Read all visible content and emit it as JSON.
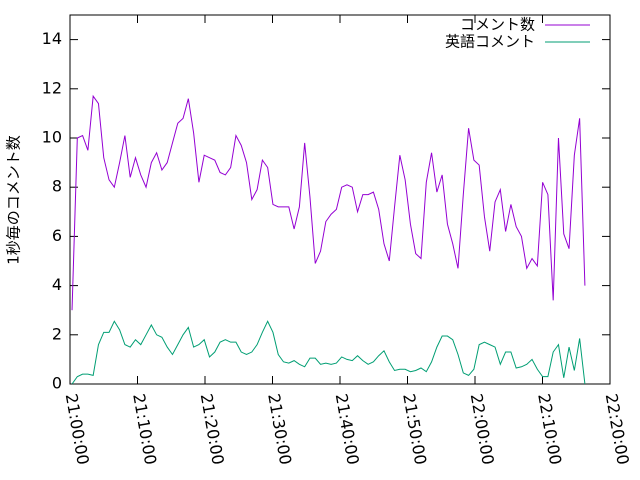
{
  "chart_data": {
    "type": "line",
    "ylabel": "1秒毎のコメント数",
    "x": [
      "21:00:18",
      "21:01:05",
      "21:01:52",
      "21:02:39",
      "21:03:26",
      "21:04:13",
      "21:05:00",
      "21:05:47",
      "21:06:34",
      "21:07:21",
      "21:08:08",
      "21:08:55",
      "21:09:42",
      "21:10:29",
      "21:11:16",
      "21:12:03",
      "21:12:50",
      "21:13:37",
      "21:14:24",
      "21:15:11",
      "21:15:58",
      "21:16:45",
      "21:17:32",
      "21:18:19",
      "21:19:06",
      "21:19:53",
      "21:20:40",
      "21:21:27",
      "21:22:14",
      "21:23:01",
      "21:23:48",
      "21:24:35",
      "21:25:22",
      "21:26:09",
      "21:26:56",
      "21:27:43",
      "21:28:30",
      "21:29:17",
      "21:30:04",
      "21:30:51",
      "21:31:38",
      "21:32:25",
      "21:33:12",
      "21:33:59",
      "21:34:46",
      "21:35:33",
      "21:36:20",
      "21:37:07",
      "21:37:54",
      "21:38:41",
      "21:39:28",
      "21:40:15",
      "21:41:02",
      "21:41:49",
      "21:42:36",
      "21:43:23",
      "21:44:10",
      "21:44:57",
      "21:45:44",
      "21:46:31",
      "21:47:18",
      "21:48:05",
      "21:48:52",
      "21:49:39",
      "21:50:26",
      "21:51:13",
      "21:52:00",
      "21:52:47",
      "21:53:34",
      "21:54:21",
      "21:55:08",
      "21:55:55",
      "21:56:42",
      "21:57:29",
      "21:58:16",
      "21:59:03",
      "21:59:50",
      "22:00:37",
      "22:01:24",
      "22:02:11",
      "22:02:58",
      "22:03:45",
      "22:04:32",
      "22:05:19",
      "22:06:06",
      "22:06:53",
      "22:07:40",
      "22:08:27",
      "22:09:14",
      "22:10:01",
      "22:10:48",
      "22:11:35",
      "22:12:22",
      "22:13:09",
      "22:13:56",
      "22:14:43",
      "22:15:30",
      "22:16:17"
    ],
    "series": [
      {
        "name": "コメント数",
        "color": "#9400d3",
        "values": [
          3.0,
          10.0,
          10.1,
          9.5,
          11.7,
          11.4,
          9.2,
          8.3,
          8.0,
          9.0,
          10.1,
          8.4,
          9.2,
          8.5,
          8.0,
          9.0,
          9.4,
          8.7,
          9.0,
          9.8,
          10.6,
          10.8,
          11.6,
          10.2,
          8.2,
          9.3,
          9.2,
          9.1,
          8.6,
          8.5,
          8.8,
          10.1,
          9.7,
          9.0,
          7.5,
          7.9,
          9.1,
          8.8,
          7.3,
          7.2,
          7.2,
          7.2,
          6.3,
          7.2,
          9.8,
          7.6,
          4.9,
          5.4,
          6.6,
          6.9,
          7.1,
          8.0,
          8.1,
          8.0,
          7.0,
          7.7,
          7.7,
          7.8,
          7.1,
          5.7,
          5.0,
          7.2,
          9.3,
          8.3,
          6.5,
          5.3,
          5.1,
          8.2,
          9.4,
          7.8,
          8.5,
          6.5,
          5.7,
          4.7,
          7.7,
          10.4,
          9.1,
          8.9,
          6.8,
          5.4,
          7.4,
          7.9,
          6.2,
          7.3,
          6.4,
          6.0,
          4.7,
          5.1,
          4.8,
          8.2,
          7.7,
          3.4,
          10.0,
          6.1,
          5.5,
          9.3,
          10.8,
          4.0
        ]
      },
      {
        "name": "英語コメント",
        "color": "#009e73",
        "values": [
          0.0,
          0.3,
          0.4,
          0.4,
          0.35,
          1.6,
          2.1,
          2.1,
          2.55,
          2.2,
          1.6,
          1.5,
          1.8,
          1.6,
          2.0,
          2.4,
          2.0,
          1.9,
          1.5,
          1.2,
          1.6,
          2.0,
          2.3,
          1.5,
          1.6,
          1.8,
          1.1,
          1.3,
          1.7,
          1.8,
          1.7,
          1.7,
          1.3,
          1.2,
          1.3,
          1.6,
          2.1,
          2.55,
          2.1,
          1.2,
          0.9,
          0.85,
          0.95,
          0.8,
          0.7,
          1.05,
          1.05,
          0.8,
          0.85,
          0.8,
          0.85,
          1.1,
          1.0,
          0.95,
          1.15,
          0.95,
          0.8,
          0.9,
          1.15,
          1.35,
          0.9,
          0.55,
          0.6,
          0.6,
          0.5,
          0.55,
          0.65,
          0.5,
          0.9,
          1.5,
          1.95,
          1.95,
          1.8,
          1.2,
          0.45,
          0.35,
          0.6,
          1.6,
          1.7,
          1.6,
          1.5,
          0.8,
          1.3,
          1.3,
          0.65,
          0.7,
          0.8,
          1.0,
          0.6,
          0.3,
          0.3,
          1.3,
          1.6,
          0.25,
          1.5,
          0.55,
          1.85,
          0.0
        ]
      }
    ],
    "xlim": [
      "21:00:00",
      "22:20:00"
    ],
    "xticks": [
      "21:00:00",
      "21:10:00",
      "21:20:00",
      "21:30:00",
      "21:40:00",
      "21:50:00",
      "22:00:00",
      "22:10:00",
      "22:20:00"
    ],
    "ylim": [
      0,
      15
    ],
    "yticks": [
      0,
      2,
      4,
      6,
      8,
      10,
      12,
      14
    ],
    "grid": false,
    "legend": "top-right"
  }
}
